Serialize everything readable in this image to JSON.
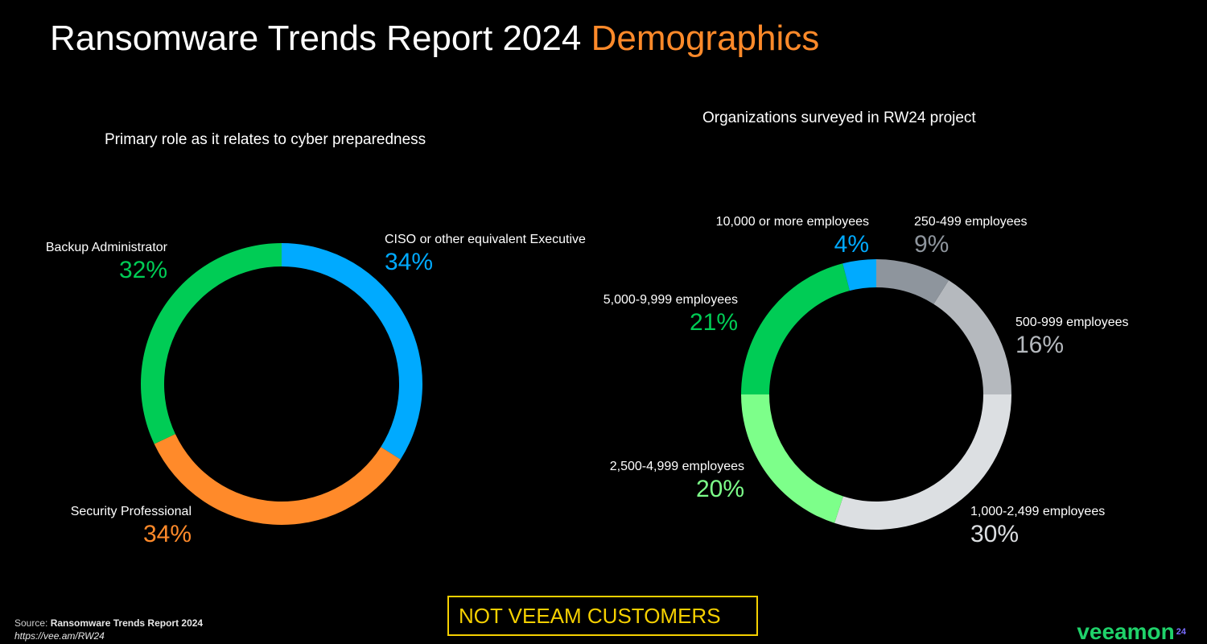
{
  "header": {
    "title_main": "Ransomware Trends Report 2024",
    "title_accent": "Demographics"
  },
  "chart_data": [
    {
      "type": "pie",
      "title": "Primary role as it relates to cyber preparedness",
      "categories": [
        "CISO or other equivalent Executive",
        "Security Professional",
        "Backup Administrator"
      ],
      "values": [
        34,
        34,
        32
      ],
      "labels": [
        "34%",
        "34%",
        "32%"
      ],
      "colors": [
        "#00aaff",
        "#ff8a2a",
        "#00cc55"
      ]
    },
    {
      "type": "pie",
      "title": "Organizations surveyed in RW24 project",
      "categories": [
        "250-499 employees",
        "500-999 employees",
        "1,000-2,499 employees",
        "2,500-4,999 employees",
        "5,000-9,999 employees",
        "10,000 or more employees"
      ],
      "values": [
        9,
        16,
        30,
        20,
        21,
        4
      ],
      "labels": [
        "9%",
        "16%",
        "30%",
        "20%",
        "21%",
        "4%"
      ],
      "colors": [
        "#8e959d",
        "#b5b9be",
        "#dcdfe2",
        "#7dff8a",
        "#00cc55",
        "#00aaff"
      ]
    }
  ],
  "footer": {
    "banner": "NOT VEEAM CUSTOMERS",
    "source_prefix": "Source:",
    "source_name": "Ransomware Trends Report 2024",
    "source_url": "https://vee.am/RW24",
    "brand": "veeamon",
    "brand_sup": "24"
  }
}
